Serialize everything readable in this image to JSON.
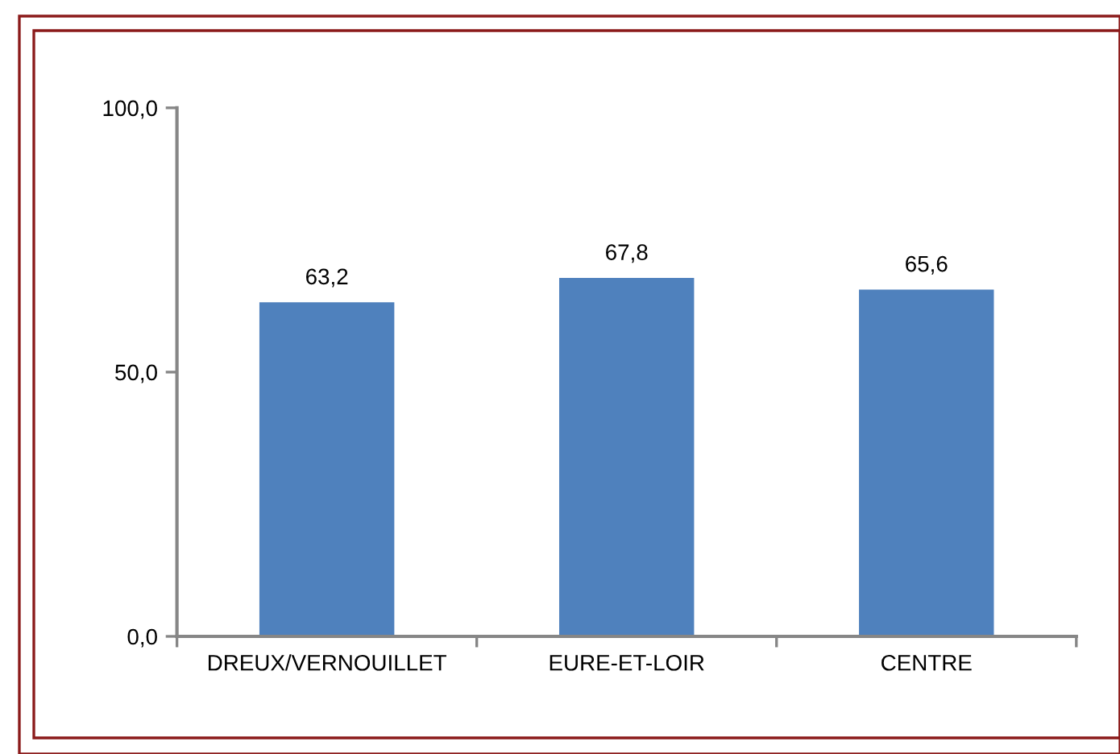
{
  "chart_data": {
    "type": "bar",
    "categories": [
      "DREUX/VERNOUILLET",
      "EURE-ET-LOIR",
      "CENTRE"
    ],
    "values": [
      63.2,
      67.8,
      65.6
    ],
    "color": "#4f81bd",
    "ylim": [
      0,
      100
    ],
    "yticks": [
      {
        "value": 0,
        "label": "0,0"
      },
      {
        "value": 50,
        "label": "50,0"
      },
      {
        "value": 100,
        "label": "100,0"
      }
    ],
    "value_labels": [
      "63,2",
      "67,8",
      "65,6"
    ],
    "grid": false,
    "legend": false
  }
}
